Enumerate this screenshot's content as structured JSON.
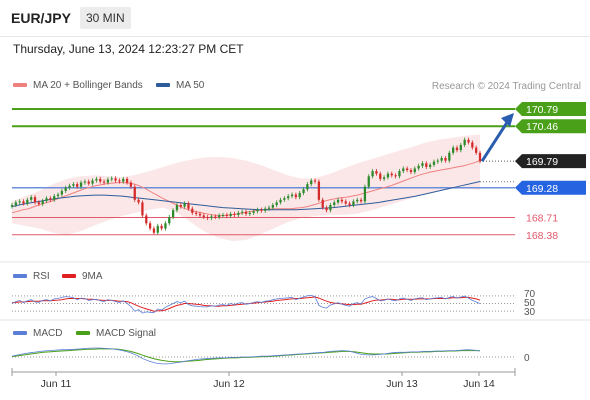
{
  "header": {
    "symbol": "EUR/JPY",
    "timeframe": "30 MIN"
  },
  "datetime": "Thursday, June 13, 2024 12:23:27 PM CET",
  "legend": {
    "ma20": {
      "label": "MA 20 + Bollinger Bands",
      "color": "#f08080"
    },
    "ma50": {
      "label": "MA 50",
      "color": "#2e5c9a"
    },
    "credit": "Research © 2024 Trading Central"
  },
  "rsi_legend": {
    "rsi": {
      "label": "RSI",
      "color": "#5b7fd6"
    },
    "ma": {
      "label": "9MA",
      "color": "#e02020"
    }
  },
  "macd_legend": {
    "macd": {
      "label": "MACD",
      "color": "#5b7fd6"
    },
    "signal": {
      "label": "MACD Signal",
      "color": "#4aa018"
    }
  },
  "colors": {
    "bull": "#2c8a2c",
    "bear": "#d42a2a",
    "resistance": "#4aa018",
    "support_blue": "#2563e0",
    "support_red": "#e05a6a",
    "price": "#222222",
    "arrow": "#2a5db0"
  },
  "chart_data": [
    {
      "type": "candlestick",
      "ylim": [
        168.05,
        171.0
      ],
      "x_ticks": [
        "Jun 11",
        "Jun 12",
        "Jun 13",
        "Jun 14"
      ],
      "levels": [
        {
          "label": "170.79",
          "value": 170.79,
          "kind": "resistance"
        },
        {
          "label": "170.46",
          "value": 170.46,
          "kind": "resistance"
        },
        {
          "label": "169.79",
          "value": 169.79,
          "kind": "price"
        },
        {
          "label": "169.28",
          "value": 169.28,
          "kind": "support_blue"
        },
        {
          "label": "168.71",
          "value": 168.71,
          "kind": "support_red"
        },
        {
          "label": "168.38",
          "value": 168.38,
          "kind": "support_red"
        }
      ],
      "forecast_target": 170.79,
      "closes": [
        168.95,
        169.0,
        169.02,
        168.98,
        169.05,
        169.1,
        169.0,
        168.97,
        169.03,
        169.08,
        169.05,
        169.12,
        169.15,
        169.22,
        169.28,
        169.32,
        169.35,
        169.3,
        169.38,
        169.4,
        169.36,
        169.42,
        169.45,
        169.4,
        169.38,
        169.44,
        169.46,
        169.42,
        169.4,
        169.45,
        169.38,
        169.3,
        169.05,
        169.0,
        168.75,
        168.6,
        168.5,
        168.42,
        168.55,
        168.5,
        168.6,
        168.72,
        168.85,
        168.95,
        168.92,
        168.98,
        168.88,
        168.8,
        168.78,
        168.75,
        168.72,
        168.7,
        168.73,
        168.72,
        168.75,
        168.76,
        168.74,
        168.78,
        168.76,
        168.8,
        168.82,
        168.78,
        168.8,
        168.83,
        168.86,
        168.84,
        168.88,
        168.9,
        168.95,
        169.0,
        169.05,
        169.08,
        169.12,
        169.15,
        169.1,
        169.18,
        169.25,
        169.35,
        169.42,
        169.4,
        169.05,
        168.9,
        168.85,
        168.95,
        169.0,
        169.05,
        169.02,
        168.98,
        168.95,
        169.02,
        169.05,
        169.02,
        169.3,
        169.5,
        169.6,
        169.55,
        169.45,
        169.48,
        169.55,
        169.52,
        169.5,
        169.6,
        169.65,
        169.62,
        169.58,
        169.65,
        169.7,
        169.75,
        169.68,
        169.72,
        169.78,
        169.8,
        169.85,
        169.8,
        169.95,
        170.05,
        170.0,
        170.1,
        170.2,
        170.15,
        170.05,
        169.95,
        169.79
      ],
      "ma20": [
        168.8,
        168.83,
        168.86,
        168.88,
        168.92,
        168.96,
        168.99,
        169.02,
        169.06,
        169.1,
        169.14,
        169.18,
        169.22,
        169.26,
        169.29,
        169.32,
        169.34,
        169.36,
        169.37,
        169.38,
        169.38,
        169.37,
        169.35,
        169.31,
        169.26,
        169.2,
        169.14,
        169.08,
        169.03,
        168.98,
        168.93,
        168.88,
        168.85,
        168.82,
        168.8,
        168.78,
        168.76,
        168.75,
        168.75,
        168.76,
        168.77,
        168.79,
        168.81,
        168.83,
        168.85,
        168.86,
        168.87,
        168.88,
        168.88,
        168.88,
        168.88,
        168.89,
        168.9,
        168.92,
        168.95,
        168.98,
        169.02,
        169.05,
        169.07,
        169.09,
        169.1,
        169.12,
        169.14,
        169.17,
        169.2,
        169.23,
        169.26,
        169.29,
        169.32,
        169.36,
        169.4,
        169.44,
        169.48,
        169.52,
        169.55,
        169.58,
        169.6,
        169.62,
        169.64,
        169.66,
        169.68,
        169.7,
        169.73,
        169.76,
        169.8
      ],
      "ma50": [
        168.92,
        168.96,
        168.99,
        169.02,
        169.05,
        169.08,
        169.1,
        169.12,
        169.13,
        169.14,
        169.14,
        169.13,
        169.12,
        169.1,
        169.08,
        169.06,
        169.04,
        169.02,
        169.0,
        168.98,
        168.96,
        168.94,
        168.92,
        168.9,
        168.89,
        168.88,
        168.87,
        168.86,
        168.86,
        168.86,
        168.86,
        168.86,
        168.87,
        168.88,
        168.89,
        168.9,
        168.92,
        168.94,
        168.96,
        168.98,
        169.0,
        169.03,
        169.06,
        169.09,
        169.12,
        169.16,
        169.2,
        169.24,
        169.28,
        169.32,
        169.36,
        169.4
      ],
      "bb_upper": [
        169.02,
        169.12,
        169.22,
        169.35,
        169.45,
        169.5,
        169.52,
        169.5,
        169.48,
        169.53,
        169.6,
        169.68,
        169.76,
        169.82,
        169.86,
        169.87,
        169.85,
        169.8,
        169.72,
        169.62,
        169.52,
        169.46,
        169.46,
        169.54,
        169.64,
        169.74,
        169.82,
        169.9,
        169.98,
        170.06,
        170.14,
        170.2,
        170.24,
        170.28,
        170.3
      ],
      "bb_lower": [
        168.6,
        168.55,
        168.5,
        168.42,
        168.38,
        168.45,
        168.56,
        168.66,
        168.74,
        168.8,
        168.86,
        168.9,
        168.8,
        168.62,
        168.44,
        168.32,
        168.26,
        168.28,
        168.38,
        168.5,
        168.62,
        168.7,
        168.74,
        168.76,
        168.76,
        168.78,
        168.84,
        168.92,
        169.0,
        169.08,
        169.16,
        169.22,
        169.26,
        169.26,
        169.24
      ]
    },
    {
      "type": "line",
      "name": "RSI",
      "y_ticks": [
        "70",
        "50",
        "30"
      ],
      "ylim": [
        20,
        80
      ],
      "values": [
        50,
        55,
        58,
        52,
        57,
        60,
        54,
        53,
        58,
        60,
        57,
        62,
        63,
        66,
        68,
        67,
        65,
        60,
        64,
        63,
        58,
        60,
        61,
        57,
        55,
        60,
        58,
        55,
        53,
        57,
        50,
        42,
        30,
        34,
        25,
        28,
        27,
        26,
        36,
        33,
        40,
        45,
        50,
        55,
        52,
        56,
        47,
        44,
        43,
        42,
        41,
        41,
        44,
        43,
        46,
        47,
        45,
        50,
        47,
        51,
        52,
        48,
        50,
        53,
        55,
        53,
        56,
        57,
        60,
        62,
        63,
        64,
        65,
        66,
        60,
        64,
        67,
        70,
        71,
        68,
        45,
        40,
        38,
        46,
        49,
        52,
        48,
        45,
        43,
        50,
        52,
        49,
        62,
        66,
        68,
        63,
        57,
        58,
        62,
        59,
        57,
        62,
        64,
        61,
        58,
        62,
        64,
        65,
        60,
        62,
        64,
        65,
        66,
        62,
        66,
        68,
        64,
        67,
        69,
        64,
        58,
        54,
        50
      ],
      "ma_values": [
        52,
        53,
        54,
        54,
        55,
        56,
        56,
        56,
        57,
        57,
        57,
        58,
        59,
        60,
        62,
        63,
        63,
        63,
        63,
        62,
        61,
        61,
        60,
        59,
        58,
        58,
        58,
        57,
        56,
        56,
        55,
        52,
        47,
        43,
        39,
        36,
        33,
        30,
        31,
        31,
        33,
        37,
        41,
        45,
        47,
        50,
        50,
        49,
        48,
        47,
        45,
        44,
        44,
        43,
        43,
        44,
        44,
        45,
        46,
        47,
        48,
        49,
        50,
        51,
        52,
        53,
        54,
        55,
        56,
        58,
        59,
        60,
        61,
        62,
        63,
        63,
        64,
        65,
        66,
        67,
        64,
        60,
        56,
        53,
        51,
        50,
        49,
        48,
        47,
        47,
        48,
        48,
        51,
        54,
        57,
        59,
        59,
        60,
        61,
        61,
        60,
        60,
        61,
        61,
        61,
        61,
        62,
        62,
        62,
        62,
        63,
        63,
        63,
        63,
        64,
        65,
        65,
        65,
        66,
        66,
        64,
        62,
        59
      ]
    },
    {
      "type": "line",
      "name": "MACD",
      "y_ticks": [
        "0"
      ],
      "ylim": [
        -0.35,
        0.35
      ],
      "values": [
        0.02,
        0.05,
        0.08,
        0.1,
        0.12,
        0.14,
        0.15,
        0.16,
        0.17,
        0.17,
        0.18,
        0.19,
        0.2,
        0.21,
        0.21,
        0.2,
        0.19,
        0.17,
        0.14,
        0.1,
        0.04,
        -0.04,
        -0.1,
        -0.14,
        -0.16,
        -0.16,
        -0.14,
        -0.12,
        -0.09,
        -0.07,
        -0.05,
        -0.04,
        -0.03,
        -0.02,
        -0.02,
        -0.01,
        -0.01,
        0.0,
        0.0,
        0.01,
        0.02,
        0.02,
        0.03,
        0.04,
        0.05,
        0.06,
        0.07,
        0.08,
        0.09,
        0.1,
        0.11,
        0.13,
        0.14,
        0.15,
        0.14,
        0.1,
        0.06,
        0.05,
        0.05,
        0.06,
        0.08,
        0.1,
        0.11,
        0.11,
        0.12,
        0.12,
        0.13,
        0.13,
        0.14,
        0.14,
        0.15,
        0.15,
        0.16,
        0.17,
        0.16,
        0.14
      ],
      "signal": [
        0.01,
        0.03,
        0.05,
        0.07,
        0.09,
        0.11,
        0.12,
        0.13,
        0.14,
        0.15,
        0.16,
        0.17,
        0.18,
        0.18,
        0.19,
        0.19,
        0.19,
        0.18,
        0.16,
        0.13,
        0.09,
        0.04,
        -0.01,
        -0.05,
        -0.08,
        -0.1,
        -0.11,
        -0.11,
        -0.1,
        -0.09,
        -0.08,
        -0.06,
        -0.05,
        -0.04,
        -0.03,
        -0.02,
        -0.02,
        -0.01,
        -0.01,
        0.0,
        0.01,
        0.01,
        0.02,
        0.03,
        0.04,
        0.05,
        0.06,
        0.07,
        0.08,
        0.09,
        0.1,
        0.11,
        0.12,
        0.13,
        0.13,
        0.12,
        0.1,
        0.08,
        0.07,
        0.07,
        0.07,
        0.08,
        0.09,
        0.1,
        0.11,
        0.11,
        0.12,
        0.12,
        0.13,
        0.13,
        0.14,
        0.14,
        0.15,
        0.15,
        0.15,
        0.15
      ]
    }
  ]
}
